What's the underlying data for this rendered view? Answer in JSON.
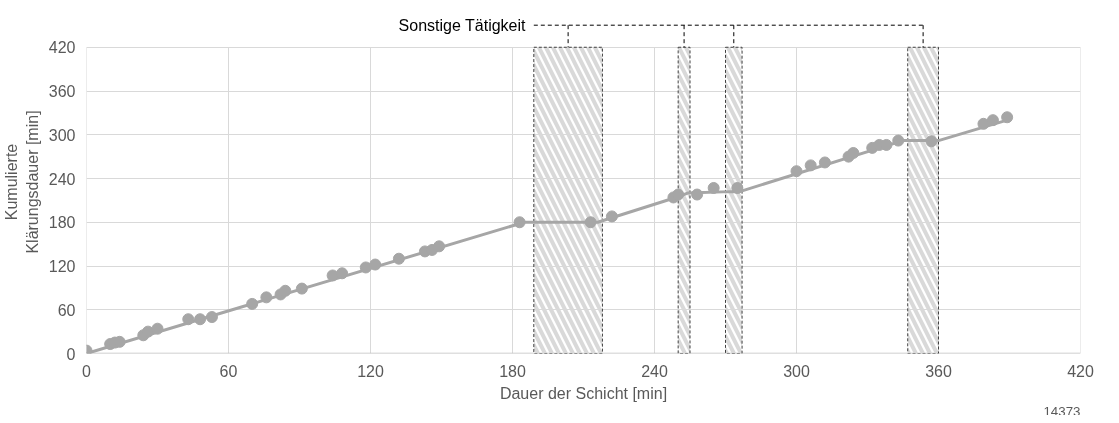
{
  "chart_data": {
    "type": "scatter",
    "xlabel": "Dauer der Schicht [min]",
    "ylabel": "Kumulierte\nKlärungsdauer [min]",
    "xlim": [
      0,
      420
    ],
    "xticks": [
      0,
      60,
      120,
      180,
      240,
      300,
      360,
      420
    ],
    "ylim": [
      0,
      420
    ],
    "yticks": [
      0,
      60,
      120,
      180,
      240,
      300,
      360,
      420
    ],
    "grid": true,
    "series": [
      {
        "type": "line",
        "color": "#a6a6a6",
        "x": [
          0,
          185,
          216,
          250,
          254,
          272,
          276,
          345,
          360,
          389
        ],
        "values": [
          0,
          180,
          180,
          215,
          220,
          222,
          222,
          292,
          292,
          320
        ]
      },
      {
        "marker": "circle",
        "color": "#a6a6a6",
        "x": [
          0,
          10,
          12,
          14,
          24,
          26,
          30,
          43,
          48,
          53,
          70,
          76,
          82,
          84,
          91,
          104,
          108,
          118,
          122,
          132,
          143,
          146,
          149,
          183,
          213,
          222,
          248,
          250,
          258,
          265,
          275,
          300,
          306,
          312,
          322,
          324,
          332,
          335,
          338,
          343,
          357,
          379,
          383,
          389
        ],
        "values": [
          4,
          13,
          15,
          16,
          25,
          30,
          34,
          47,
          47,
          50,
          68,
          77,
          81,
          86,
          89,
          107,
          110,
          118,
          122,
          130,
          140,
          142,
          147,
          180,
          180,
          188,
          214,
          218,
          218,
          227,
          227,
          250,
          258,
          262,
          270,
          275,
          282,
          286,
          286,
          292,
          291,
          315,
          320,
          324
        ]
      }
    ],
    "bands": [
      {
        "axis": "x",
        "from": 189,
        "to": 218,
        "label": "Sonstige Tätigkeit"
      },
      {
        "axis": "x",
        "from": 250,
        "to": 255
      },
      {
        "axis": "x",
        "from": 270,
        "to": 277
      },
      {
        "axis": "x",
        "from": 347,
        "to": 360
      }
    ],
    "annotations": [
      "14373"
    ]
  }
}
